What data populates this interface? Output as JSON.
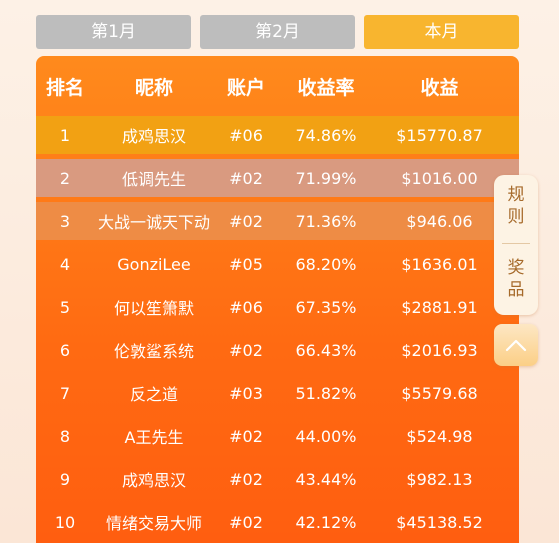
{
  "tabs": [
    {
      "label": "第1月",
      "active": false
    },
    {
      "label": "第2月",
      "active": false
    },
    {
      "label": "本月",
      "active": true
    }
  ],
  "table": {
    "headers": {
      "rank": "排名",
      "nickname": "昵称",
      "account": "账户",
      "rate": "收益率",
      "profit": "收益"
    },
    "rows": [
      {
        "rank": "1",
        "nickname": "成鸡思汉",
        "account": "#06",
        "rate": "74.86%",
        "profit": "$15770.87"
      },
      {
        "rank": "2",
        "nickname": "低调先生",
        "account": "#02",
        "rate": "71.99%",
        "profit": "$1016.00"
      },
      {
        "rank": "3",
        "nickname": "大战一诚天下动",
        "account": "#02",
        "rate": "71.36%",
        "profit": "$946.06"
      },
      {
        "rank": "4",
        "nickname": "GonziLee",
        "account": "#05",
        "rate": "68.20%",
        "profit": "$1636.01"
      },
      {
        "rank": "5",
        "nickname": "何以笙箫默",
        "account": "#06",
        "rate": "67.35%",
        "profit": "$2881.91"
      },
      {
        "rank": "6",
        "nickname": "伦敦鲨系统",
        "account": "#02",
        "rate": "66.43%",
        "profit": "$2016.93"
      },
      {
        "rank": "7",
        "nickname": "反之道",
        "account": "#03",
        "rate": "51.82%",
        "profit": "$5579.68"
      },
      {
        "rank": "8",
        "nickname": "A王先生",
        "account": "#02",
        "rate": "44.00%",
        "profit": "$524.98"
      },
      {
        "rank": "9",
        "nickname": "成鸡思汉",
        "account": "#02",
        "rate": "43.44%",
        "profit": "$982.13"
      },
      {
        "rank": "10",
        "nickname": "情绪交易大师",
        "account": "#02",
        "rate": "42.12%",
        "profit": "$45138.52"
      }
    ]
  },
  "side_menu": {
    "rules": [
      "规",
      "则"
    ],
    "prize": [
      "奖",
      "品"
    ]
  },
  "back_to_top": {
    "icon": "chevron-up-icon"
  },
  "colors": {
    "tab_active": "#f8b52f",
    "tab_inactive": "#bdbdbd",
    "board": "#ff6a12",
    "rank1_row": "#f2a113",
    "rank2_row": "#d99a80",
    "rank3_row": "#ee8c45"
  }
}
